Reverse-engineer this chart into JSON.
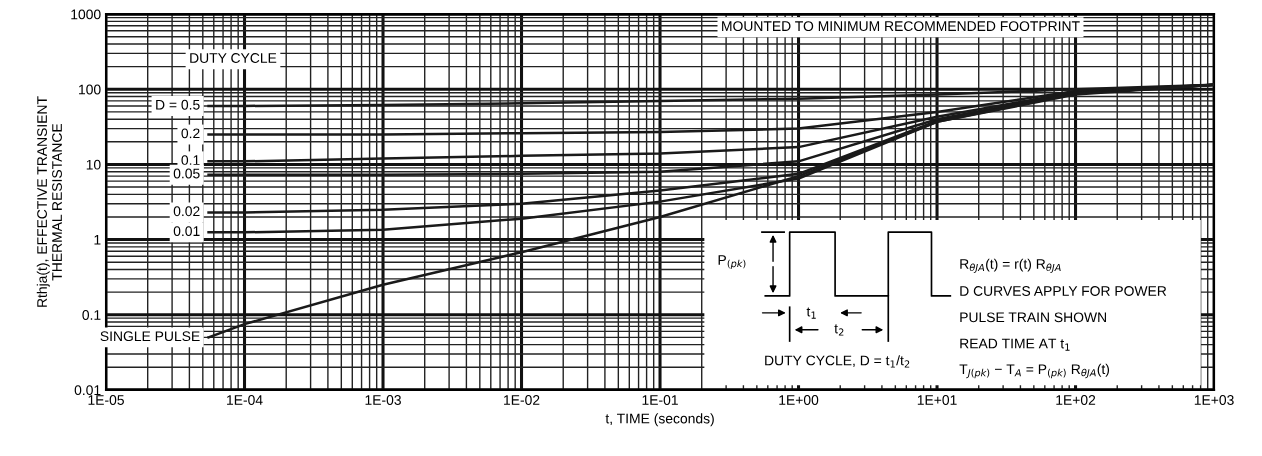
{
  "chart_data": {
    "type": "line",
    "xlabel": "t, TIME (seconds)",
    "ylabel": "Rthja(t), EFFECTIVE TRANSIENT\nTHERMAL RESISTANCE",
    "x": [
      5.5e-05,
      0.0001,
      0.001,
      0.01,
      0.1,
      1,
      10,
      100,
      1000
    ],
    "series": [
      {
        "name": "D = 0.5",
        "color": "#1a1a1a",
        "values": [
          60,
          60,
          62,
          65,
          70,
          75,
          85,
          100,
          115
        ]
      },
      {
        "name": "0.2",
        "color": "#1a1a1a",
        "values": [
          25,
          25,
          25,
          26,
          27,
          30,
          50,
          95,
          115
        ]
      },
      {
        "name": "0.1",
        "color": "#1a1a1a",
        "values": [
          11,
          11,
          12,
          13,
          14,
          17,
          43,
          92,
          115
        ]
      },
      {
        "name": "0.05",
        "color": "#1a1a1a",
        "values": [
          7.3,
          7.3,
          7.3,
          7.5,
          8,
          11,
          40,
          90,
          115
        ]
      },
      {
        "name": "0.02",
        "color": "#1a1a1a",
        "values": [
          2.3,
          2.3,
          2.5,
          3,
          4.5,
          7.5,
          38,
          88,
          115
        ]
      },
      {
        "name": "0.01",
        "color": "#1a1a1a",
        "values": [
          1.25,
          1.25,
          1.35,
          1.9,
          3.2,
          6.5,
          37,
          88,
          115
        ]
      },
      {
        "name": "SINGLE PULSE",
        "color": "#1a1a1a",
        "values": [
          0.05,
          0.075,
          0.25,
          0.68,
          2,
          7,
          37,
          85,
          115
        ]
      }
    ],
    "log": "xy",
    "xlim": [
      1e-05,
      1000
    ],
    "ylim": [
      0.01,
      1000
    ],
    "xticks": [
      {
        "value": 1e-05,
        "label": "1E-05"
      },
      {
        "value": 0.0001,
        "label": "1E-04"
      },
      {
        "value": 0.001,
        "label": "1E-03"
      },
      {
        "value": 0.01,
        "label": "1E-02"
      },
      {
        "value": 0.1,
        "label": "1E-01"
      },
      {
        "value": 1,
        "label": "1E+00"
      },
      {
        "value": 10,
        "label": "1E+01"
      },
      {
        "value": 100,
        "label": "1E+02"
      },
      {
        "value": 1000,
        "label": "1E+03"
      }
    ],
    "yticks": [
      0.01,
      0.1,
      1,
      10,
      100,
      1000
    ],
    "grid": true,
    "line_style": "solid",
    "marker": "none",
    "annotations": [
      "DUTY CYCLE",
      "MOUNTED TO MINIMUM RECOMMENDED FOOTPRINT",
      "P$_{(pk)}$",
      "t$_{1}$",
      "t$_{2}$",
      "DUTY CYCLE, D = t$_{1}$/t$_{2}$",
      "R$_{θJA}$(t) = r(t) R$_{θJA}$",
      "D CURVES APPLY FOR POWER",
      "PULSE TRAIN SHOWN",
      "READ TIME AT t$_{1}$",
      "T$_{J(pk)}$ − T$_{A}$ = P$_{(pk)}$ R$_{θJA}$(t)"
    ]
  }
}
